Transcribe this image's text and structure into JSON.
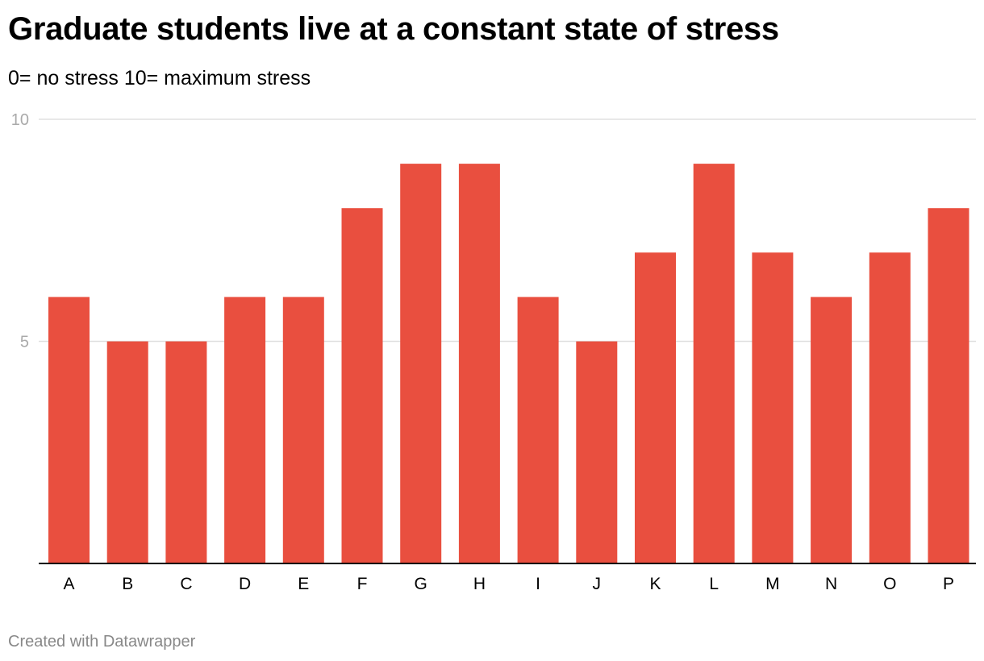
{
  "header": {
    "title": "Graduate students live at a constant state of stress",
    "subtitle": "0= no stress 10= maximum stress"
  },
  "footer": {
    "credit": "Created with Datawrapper"
  },
  "colors": {
    "bar": "#e94f3f",
    "gridline": "#e0e0e0",
    "baseline": "#000000",
    "tick_label": "#aaaaaa",
    "category_label": "#000000",
    "footer": "#888888"
  },
  "chart_data": {
    "type": "bar",
    "categories": [
      "A",
      "B",
      "C",
      "D",
      "E",
      "F",
      "G",
      "H",
      "I",
      "J",
      "K",
      "L",
      "M",
      "N",
      "O",
      "P"
    ],
    "values": [
      6,
      5,
      5,
      6,
      6,
      8,
      9,
      9,
      6,
      5,
      7,
      9,
      7,
      6,
      7,
      8
    ],
    "ylim": [
      0,
      10
    ],
    "yticks": [
      5,
      10
    ],
    "grid": true,
    "legend": "none"
  }
}
